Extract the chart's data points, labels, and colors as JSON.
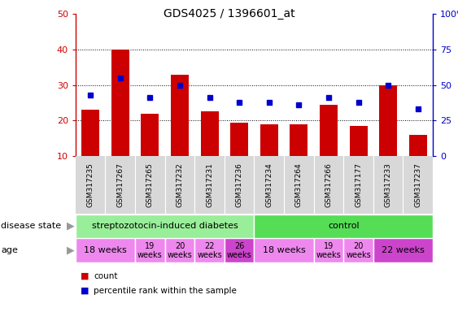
{
  "title": "GDS4025 / 1396601_at",
  "samples": [
    "GSM317235",
    "GSM317267",
    "GSM317265",
    "GSM317232",
    "GSM317231",
    "GSM317236",
    "GSM317234",
    "GSM317264",
    "GSM317266",
    "GSM317177",
    "GSM317233",
    "GSM317237"
  ],
  "counts": [
    23,
    40,
    22,
    33,
    22.5,
    19.5,
    19,
    19,
    24.5,
    18.5,
    30,
    16
  ],
  "percentiles": [
    43,
    55,
    41,
    50,
    41,
    38,
    38,
    36,
    41,
    38,
    50,
    33
  ],
  "ylim_left": [
    10,
    50
  ],
  "ylim_right": [
    0,
    100
  ],
  "yticks_left": [
    10,
    20,
    30,
    40,
    50
  ],
  "yticks_right": [
    0,
    25,
    50,
    75,
    100
  ],
  "ytick_labels_right": [
    "0",
    "25",
    "50",
    "75",
    "100%"
  ],
  "bar_color": "#cc0000",
  "dot_color": "#0000cc",
  "disease_state_groups": [
    {
      "label": "streptozotocin-induced diabetes",
      "start": 0,
      "end": 6,
      "color": "#99ee99"
    },
    {
      "label": "control",
      "start": 6,
      "end": 12,
      "color": "#55dd55"
    }
  ],
  "age_groups": [
    {
      "label": "18 weeks",
      "start": 0,
      "end": 2,
      "color": "#ee88ee"
    },
    {
      "label": "19\nweeks",
      "start": 2,
      "end": 3,
      "color": "#ee88ee"
    },
    {
      "label": "20\nweeks",
      "start": 3,
      "end": 4,
      "color": "#ee88ee"
    },
    {
      "label": "22\nweeks",
      "start": 4,
      "end": 5,
      "color": "#ee88ee"
    },
    {
      "label": "26\nweeks",
      "start": 5,
      "end": 6,
      "color": "#cc44cc"
    },
    {
      "label": "18 weeks",
      "start": 6,
      "end": 8,
      "color": "#ee88ee"
    },
    {
      "label": "19\nweeks",
      "start": 8,
      "end": 9,
      "color": "#ee88ee"
    },
    {
      "label": "20\nweeks",
      "start": 9,
      "end": 10,
      "color": "#ee88ee"
    },
    {
      "label": "22 weeks",
      "start": 10,
      "end": 12,
      "color": "#cc44cc"
    }
  ]
}
